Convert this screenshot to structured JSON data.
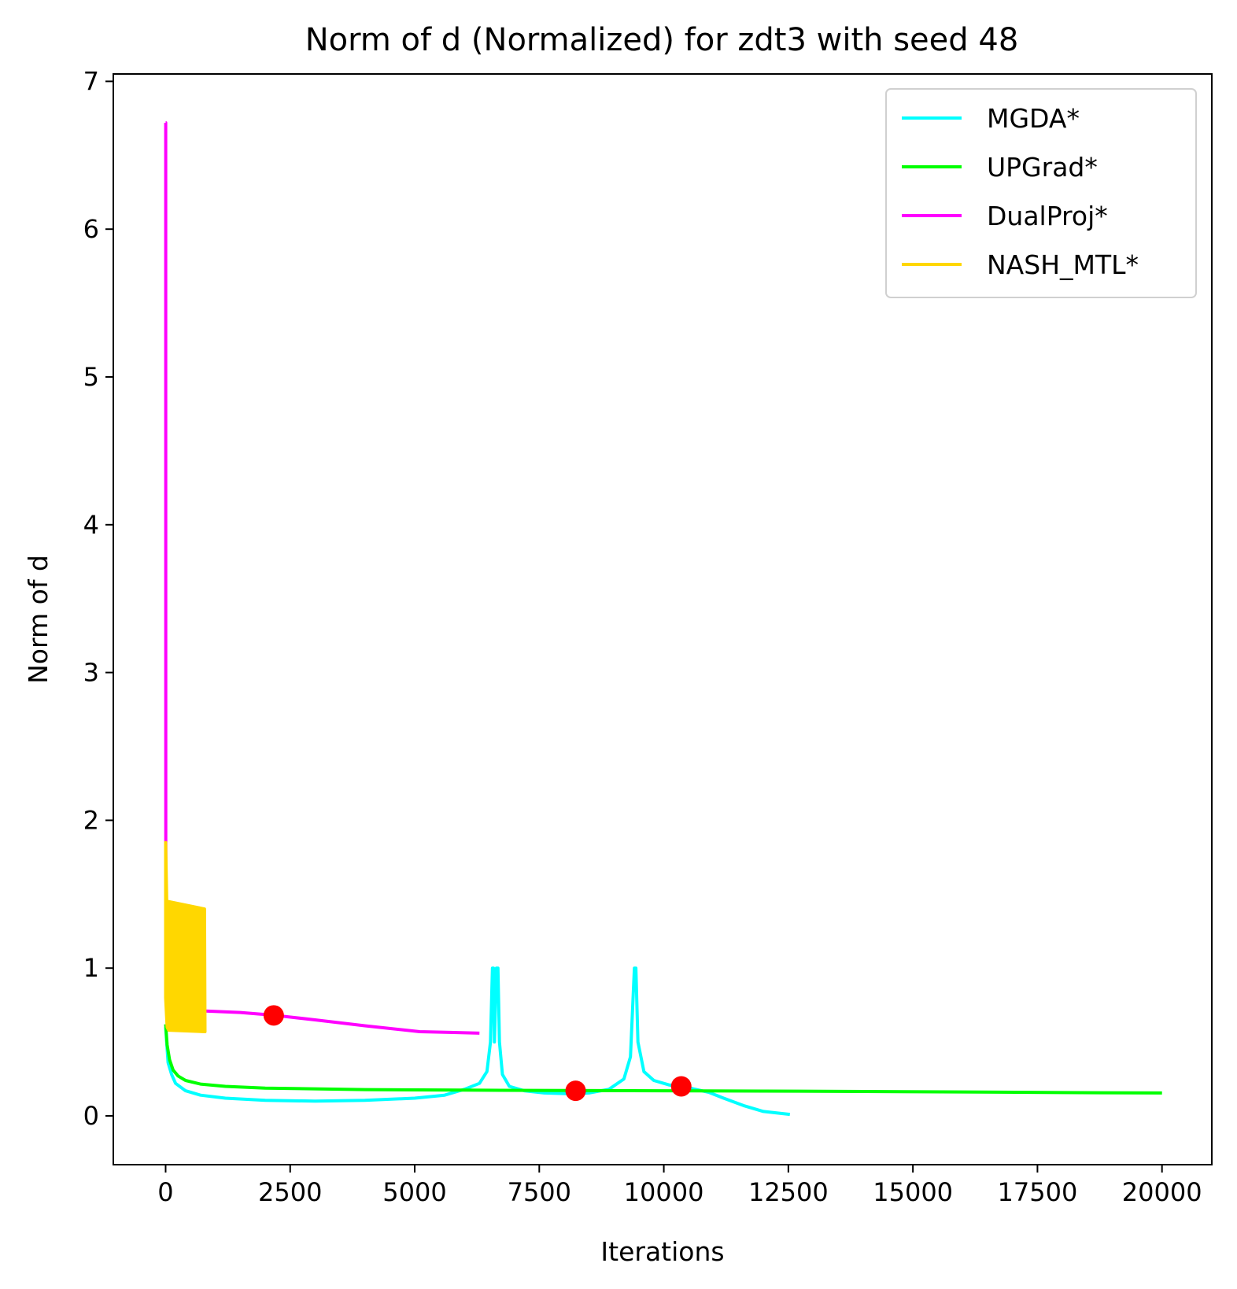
{
  "chart_data": {
    "type": "line",
    "title": "Norm of d (Normalized) for zdt3 with seed 48",
    "xlabel": "Iterations",
    "ylabel": "Norm of d",
    "xlim": [
      -1050,
      21000
    ],
    "ylim": [
      -0.33,
      7.05
    ],
    "xticks": [
      0,
      2500,
      5000,
      7500,
      10000,
      12500,
      15000,
      17500,
      20000
    ],
    "xtick_labels": [
      "0",
      "2500",
      "5000",
      "7500",
      "10000",
      "12500",
      "15000",
      "17500",
      "20000"
    ],
    "yticks": [
      0,
      1,
      2,
      3,
      4,
      5,
      6,
      7
    ],
    "ytick_labels": [
      "0",
      "1",
      "2",
      "3",
      "4",
      "5",
      "6",
      "7"
    ],
    "grid": false,
    "legend_position": "top-right",
    "series": [
      {
        "name": "MGDA*",
        "color": "#00FFFF",
        "points": [
          [
            0,
            0.6
          ],
          [
            50,
            0.36
          ],
          [
            120,
            0.28
          ],
          [
            200,
            0.22
          ],
          [
            400,
            0.17
          ],
          [
            700,
            0.14
          ],
          [
            1200,
            0.12
          ],
          [
            2000,
            0.105
          ],
          [
            3000,
            0.1
          ],
          [
            4000,
            0.105
          ],
          [
            5000,
            0.12
          ],
          [
            5600,
            0.14
          ],
          [
            6000,
            0.18
          ],
          [
            6300,
            0.22
          ],
          [
            6450,
            0.3
          ],
          [
            6520,
            0.5
          ],
          [
            6560,
            1.0
          ],
          [
            6580,
            1.0
          ],
          [
            6600,
            0.5
          ],
          [
            6640,
            1.0
          ],
          [
            6670,
            1.0
          ],
          [
            6700,
            0.5
          ],
          [
            6760,
            0.28
          ],
          [
            6900,
            0.2
          ],
          [
            7200,
            0.17
          ],
          [
            7600,
            0.155
          ],
          [
            8100,
            0.15
          ],
          [
            8500,
            0.155
          ],
          [
            8900,
            0.18
          ],
          [
            9200,
            0.25
          ],
          [
            9330,
            0.4
          ],
          [
            9410,
            1.0
          ],
          [
            9440,
            1.0
          ],
          [
            9480,
            0.5
          ],
          [
            9600,
            0.3
          ],
          [
            9800,
            0.24
          ],
          [
            10100,
            0.21
          ],
          [
            10500,
            0.19
          ],
          [
            10900,
            0.16
          ],
          [
            11200,
            0.12
          ],
          [
            11600,
            0.07
          ],
          [
            12000,
            0.03
          ],
          [
            12530,
            0.01
          ]
        ]
      },
      {
        "name": "UPGrad*",
        "color": "#00FF00",
        "points": [
          [
            0,
            0.62
          ],
          [
            30,
            0.48
          ],
          [
            80,
            0.38
          ],
          [
            150,
            0.31
          ],
          [
            250,
            0.27
          ],
          [
            400,
            0.24
          ],
          [
            700,
            0.215
          ],
          [
            1200,
            0.2
          ],
          [
            2000,
            0.188
          ],
          [
            4000,
            0.178
          ],
          [
            6000,
            0.174
          ],
          [
            8000,
            0.172
          ],
          [
            10000,
            0.17
          ],
          [
            12000,
            0.168
          ],
          [
            14000,
            0.165
          ],
          [
            16000,
            0.162
          ],
          [
            18000,
            0.158
          ],
          [
            20000,
            0.155
          ]
        ]
      },
      {
        "name": "DualProj*",
        "color": "#FF00FF",
        "points": [
          [
            0,
            6.72
          ],
          [
            2,
            6.72
          ],
          [
            3,
            0.9
          ],
          [
            10,
            0.78
          ],
          [
            50,
            0.73
          ],
          [
            200,
            0.72
          ],
          [
            800,
            0.71
          ],
          [
            1500,
            0.7
          ],
          [
            2200,
            0.68
          ],
          [
            3000,
            0.65
          ],
          [
            4000,
            0.61
          ],
          [
            5100,
            0.57
          ],
          [
            5700,
            0.565
          ],
          [
            6300,
            0.56
          ]
        ]
      },
      {
        "name": "NASH_MTL*",
        "color": "#FFD700",
        "points": [
          [
            0,
            1.85
          ],
          [
            30,
            1.3
          ],
          [
            60,
            1.45
          ],
          [
            780,
            1.4
          ],
          [
            790,
            0.57
          ],
          [
            60,
            0.58
          ],
          [
            30,
            0.6
          ],
          [
            0,
            0.8
          ]
        ]
      }
    ],
    "markers": [
      {
        "x": 2170,
        "y": 0.68,
        "color": "#FF0000"
      },
      {
        "x": 8230,
        "y": 0.17,
        "color": "#FF0000"
      },
      {
        "x": 10350,
        "y": 0.2,
        "color": "#FF0000"
      }
    ]
  }
}
